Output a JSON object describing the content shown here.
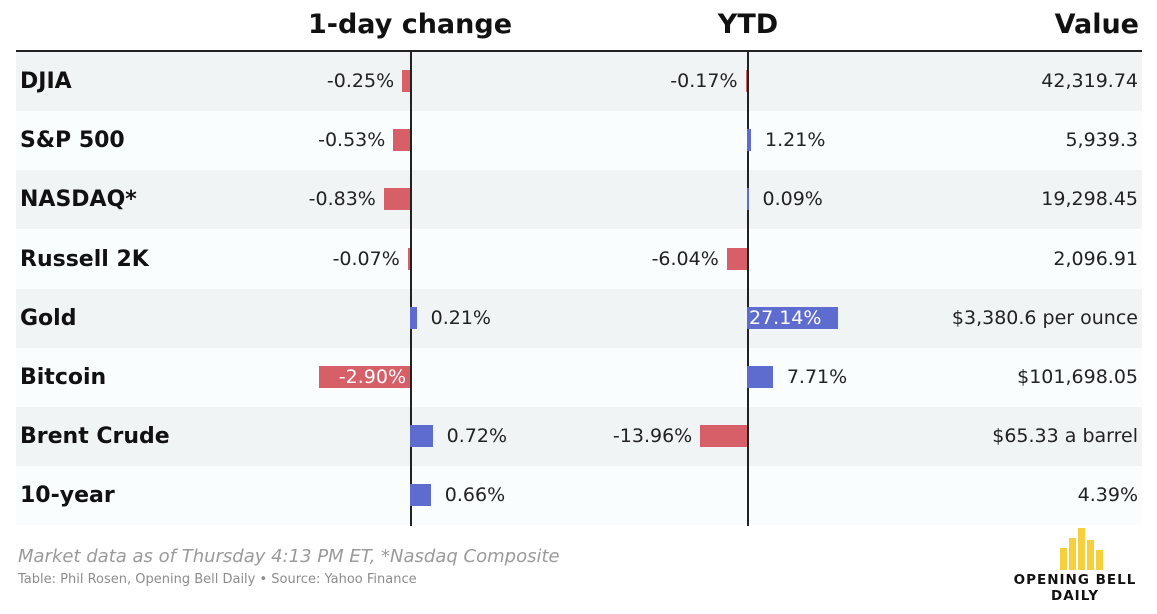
{
  "headers": {
    "one_day": "1-day change",
    "ytd": "YTD",
    "value": "Value"
  },
  "chart_data": {
    "type": "table",
    "columns": [
      "1-day change",
      "YTD",
      "Value"
    ],
    "rows": [
      {
        "name": "DJIA",
        "one_day": -0.25,
        "one_day_label": "-0.25%",
        "ytd": -0.17,
        "ytd_label": "-0.17%",
        "value": "42,319.74"
      },
      {
        "name": "S&P 500",
        "one_day": -0.53,
        "one_day_label": "-0.53%",
        "ytd": 1.21,
        "ytd_label": "1.21%",
        "value": "5,939.3"
      },
      {
        "name": "NASDAQ*",
        "one_day": -0.83,
        "one_day_label": "-0.83%",
        "ytd": 0.09,
        "ytd_label": "0.09%",
        "value": "19,298.45"
      },
      {
        "name": "Russell 2K",
        "one_day": -0.07,
        "one_day_label": "-0.07%",
        "ytd": -6.04,
        "ytd_label": "-6.04%",
        "value": "2,096.91"
      },
      {
        "name": "Gold",
        "one_day": 0.21,
        "one_day_label": "0.21%",
        "ytd": 27.14,
        "ytd_label": "27.14%",
        "value": "$3,380.6 per ounce"
      },
      {
        "name": "Bitcoin",
        "one_day": -2.9,
        "one_day_label": "-2.90%",
        "ytd": 7.71,
        "ytd_label": "7.71%",
        "value": "$101,698.05"
      },
      {
        "name": "Brent Crude",
        "one_day": 0.72,
        "one_day_label": "0.72%",
        "ytd": -13.96,
        "ytd_label": "-13.96%",
        "value": "$65.33 a barrel"
      },
      {
        "name": "10-year",
        "one_day": 0.66,
        "one_day_label": "0.66%",
        "ytd": null,
        "ytd_label": "",
        "value": "4.39%"
      }
    ],
    "colors": {
      "negative": "#d65f68",
      "positive": "#5d6cce",
      "logo": "#f6cf3c"
    }
  },
  "footer": {
    "note": "Market data as of Thursday 4:13 PM ET, *Nasdaq Composite",
    "credit": "Table: Phil Rosen, Opening Bell Daily • Source: Yahoo Finance"
  },
  "logo": {
    "line1": "OPENING BELL",
    "line2": "DAILY"
  }
}
